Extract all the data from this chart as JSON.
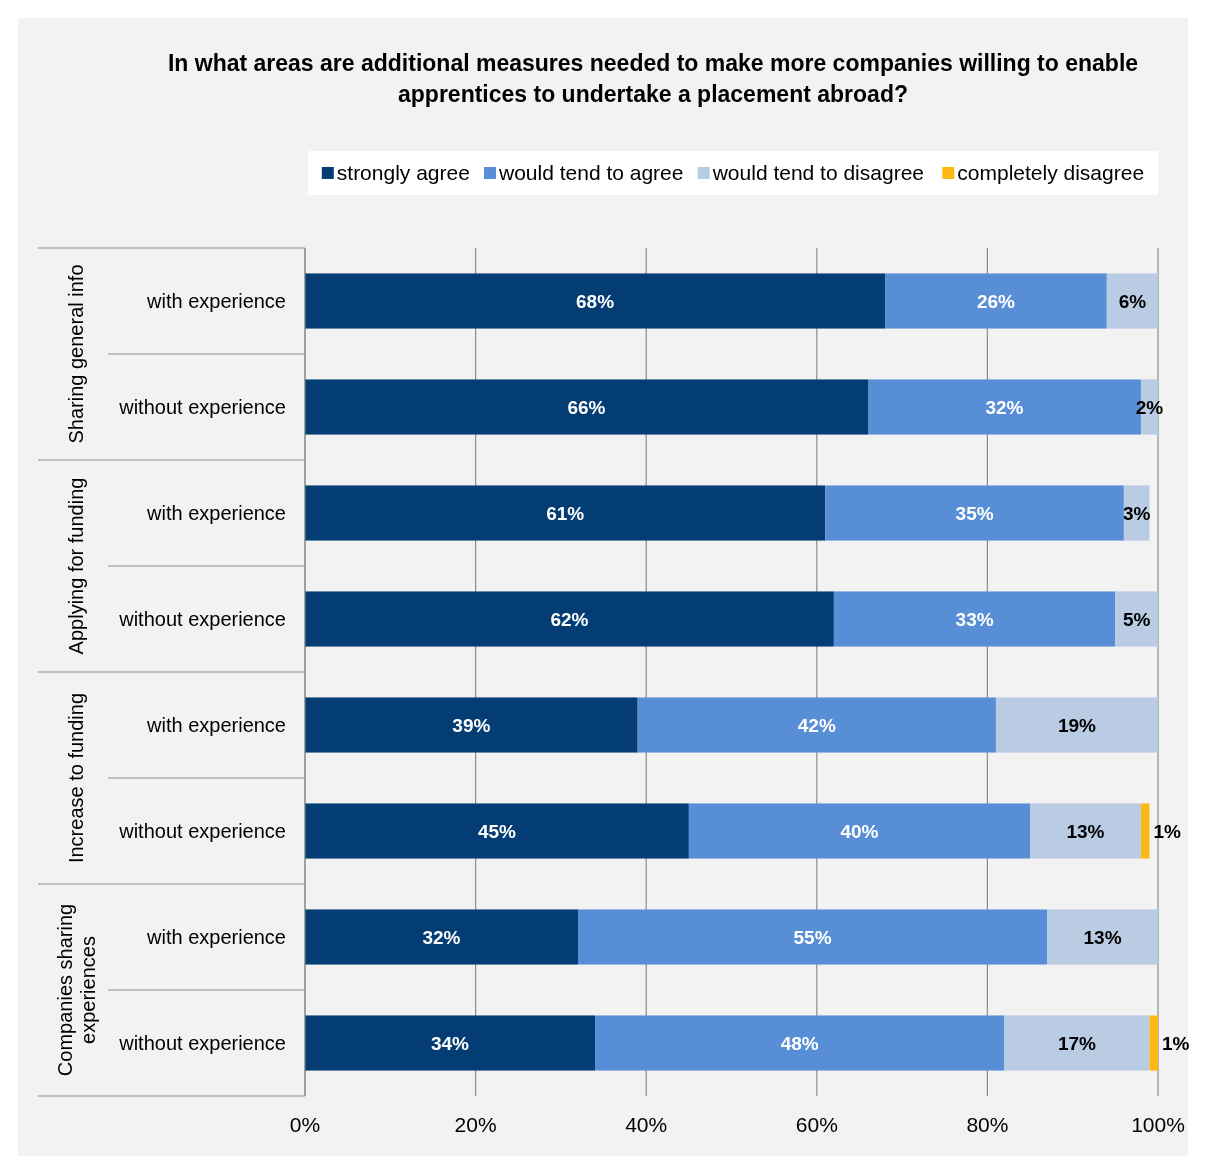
{
  "chart_data": {
    "type": "bar",
    "orientation": "horizontal",
    "stacked": true,
    "title": "In what areas are additional measures needed to make more companies willing to enable apprentices to undertake a placement abroad?",
    "categories": [
      "with experience",
      "without experience",
      "with experience",
      "without experience",
      "with experience",
      "without experience",
      "with experience",
      "without experience"
    ],
    "annotations": [
      "Sharing general info",
      "Applying for funding",
      "Increase to funding",
      "Companies sharing experiences"
    ],
    "series": [
      {
        "name": "strongly agree",
        "color": "#033d73",
        "values": [
          68,
          66,
          61,
          62,
          39,
          45,
          32,
          34
        ],
        "value_labels": [
          "68%",
          "66%",
          "61%",
          "62%",
          "39%",
          "45%",
          "32%",
          "34%"
        ]
      },
      {
        "name": "would tend to agree",
        "color": "#588ed6",
        "values": [
          26,
          32,
          35,
          33,
          42,
          40,
          55,
          48
        ],
        "value_labels": [
          "26%",
          "32%",
          "35%",
          "33%",
          "42%",
          "40%",
          "55%",
          "48%"
        ]
      },
      {
        "name": "would tend to disagree",
        "color": "#b9cce4",
        "values": [
          6,
          2,
          3,
          5,
          19,
          13,
          13,
          17
        ],
        "value_labels": [
          "6%",
          "2%",
          "3%",
          "5%",
          "19%",
          "13%",
          "13%",
          "17%"
        ]
      },
      {
        "name": "completely disagree",
        "color": "#fdb913",
        "values": [
          null,
          null,
          null,
          null,
          null,
          1,
          null,
          1
        ],
        "value_labels": [
          null,
          null,
          null,
          null,
          null,
          "1%",
          null,
          "1%"
        ]
      }
    ],
    "xlim": [
      0,
      100
    ],
    "xticks": [
      {
        "value": 0,
        "label": "0%"
      },
      {
        "value": 20,
        "label": "20%"
      },
      {
        "value": 40,
        "label": "40%"
      },
      {
        "value": 60,
        "label": "60%"
      },
      {
        "value": 80,
        "label": "80%"
      },
      {
        "value": 100,
        "label": "100%"
      }
    ],
    "grid": "x",
    "legend": "top right"
  }
}
